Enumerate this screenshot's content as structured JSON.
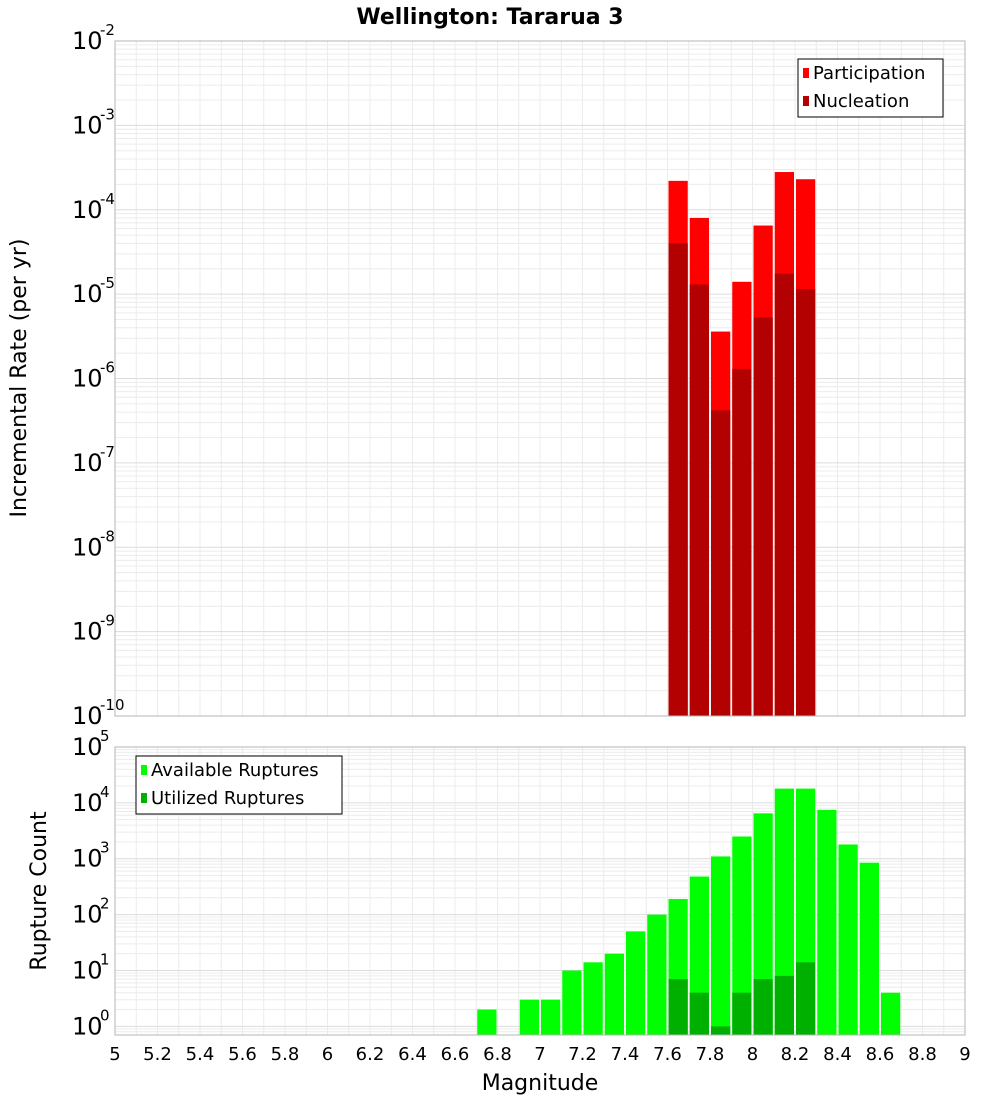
{
  "chart_data": [
    {
      "type": "bar",
      "title": "Wellington: Tararua 3",
      "xlabel": "",
      "ylabel": "Incremental Rate (per yr)",
      "y_scale": "log",
      "ylim": [
        1e-10,
        0.01
      ],
      "xlim": [
        5,
        9
      ],
      "grid": true,
      "legend_position": "top-right",
      "colors": {
        "Participation": "#ff0000",
        "Nucleation": "#b30000"
      },
      "bin_width": 0.1,
      "x": [
        7.65,
        7.75,
        7.85,
        7.95,
        8.05,
        8.15,
        8.25
      ],
      "series": [
        {
          "name": "Participation",
          "values": [
            0.00022,
            8e-05,
            3.6e-06,
            1.4e-05,
            6.5e-05,
            0.00028,
            0.00023
          ]
        },
        {
          "name": "Nucleation",
          "values": [
            4e-05,
            1.3e-05,
            4.2e-07,
            1.3e-06,
            5.3e-06,
            1.75e-05,
            1.15e-05
          ]
        }
      ]
    },
    {
      "type": "bar",
      "title": "",
      "xlabel": "Magnitude",
      "ylabel": "Rupture Count",
      "y_scale": "log",
      "ylim": [
        0.7,
        100000
      ],
      "xlim": [
        5,
        9
      ],
      "xticks": [
        "5",
        "5.2",
        "5.4",
        "5.6",
        "5.8",
        "6",
        "6.2",
        "6.4",
        "6.6",
        "6.8",
        "7",
        "7.2",
        "7.4",
        "7.6",
        "7.8",
        "8",
        "8.2",
        "8.4",
        "8.6",
        "8.8",
        "9"
      ],
      "grid": true,
      "legend_position": "top-left",
      "colors": {
        "Available Ruptures": "#00ff00",
        "Utilized Ruptures": "#00b000"
      },
      "bin_width": 0.1,
      "series": [
        {
          "name": "Available Ruptures",
          "x": [
            6.75,
            6.95,
            7.05,
            7.15,
            7.25,
            7.35,
            7.45,
            7.55,
            7.65,
            7.75,
            7.85,
            7.95,
            8.05,
            8.15,
            8.25,
            8.35,
            8.45,
            8.55,
            8.65
          ],
          "values": [
            2,
            3,
            3,
            10,
            14,
            20,
            50,
            100,
            190,
            480,
            1100,
            2500,
            6500,
            18000,
            18000,
            7500,
            1800,
            850,
            4
          ]
        },
        {
          "name": "Utilized Ruptures",
          "x": [
            7.65,
            7.75,
            7.85,
            7.95,
            8.05,
            8.15,
            8.25
          ],
          "values": [
            7,
            4,
            1,
            4,
            7,
            8,
            14
          ]
        }
      ]
    }
  ]
}
